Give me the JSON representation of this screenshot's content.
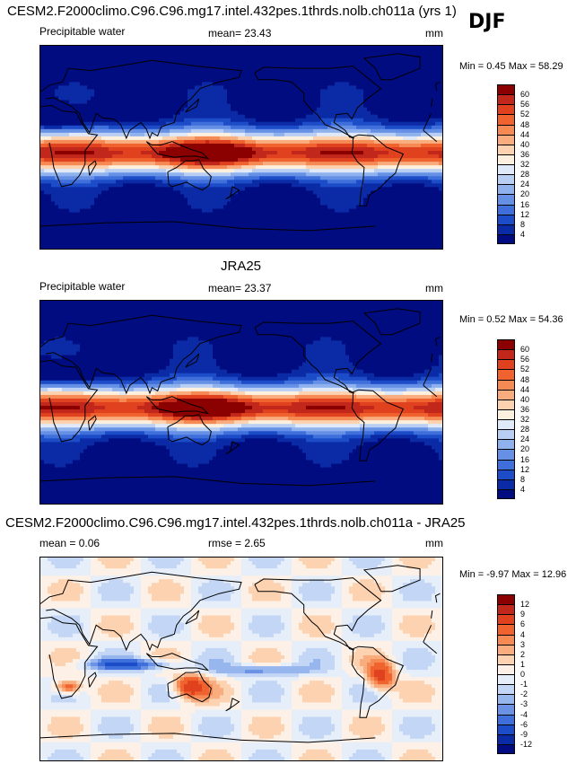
{
  "panels": [
    {
      "title": "CESM2.F2000climo.C96.C96.mg17.intel.432pes.1thrds.nolb.ch011a (yrs 1)",
      "variable": "Precipitable water",
      "stat": "mean=  23.43",
      "units": "mm",
      "minmax": "Min =   0.45 Max =  58.29",
      "kind": "abs",
      "colorbar": {
        "labels": [
          "60",
          "56",
          "52",
          "48",
          "44",
          "40",
          "36",
          "32",
          "28",
          "24",
          "20",
          "16",
          "12",
          "8",
          "4"
        ],
        "colors": [
          "#8b0000",
          "#c1271a",
          "#e0421f",
          "#f0632f",
          "#f58a55",
          "#f9ad7f",
          "#fcd2b0",
          "#fdf0df",
          "#dfe9f7",
          "#b8cff3",
          "#8fb1ee",
          "#6690e6",
          "#3e6fdb",
          "#1d4cc8",
          "#0b2aa6",
          "#000c80"
        ]
      }
    },
    {
      "title": "JRA25",
      "variable": "Precipitable water",
      "stat": "mean=  23.37",
      "units": "mm",
      "minmax": "Min =   0.52 Max =  54.36",
      "kind": "abs",
      "colorbar": {
        "labels": [
          "60",
          "56",
          "52",
          "48",
          "44",
          "40",
          "36",
          "32",
          "28",
          "24",
          "20",
          "16",
          "12",
          "8",
          "4"
        ],
        "colors": [
          "#8b0000",
          "#c1271a",
          "#e0421f",
          "#f0632f",
          "#f58a55",
          "#f9ad7f",
          "#fcd2b0",
          "#fdf0df",
          "#dfe9f7",
          "#b8cff3",
          "#8fb1ee",
          "#6690e6",
          "#3e6fdb",
          "#1d4cc8",
          "#0b2aa6",
          "#000c80"
        ]
      }
    },
    {
      "title": "CESM2.F2000climo.C96.C96.mg17.intel.432pes.1thrds.nolb.ch011a - JRA25",
      "variable": "mean =   0.06",
      "stat": "rmse =   2.65",
      "units": "mm",
      "minmax": "Min =  -9.97 Max =  12.96",
      "kind": "diff",
      "colorbar": {
        "labels": [
          "12",
          "9",
          "6",
          "4",
          "3",
          "2",
          "1",
          "0",
          "-1",
          "-2",
          "-3",
          "-4",
          "-6",
          "-9",
          "-12"
        ],
        "colors": [
          "#8b0000",
          "#c1271a",
          "#e0421f",
          "#f0632f",
          "#f58a55",
          "#f9ad7f",
          "#fcd2b0",
          "#fdf0e6",
          "#e6eefa",
          "#c3d6f5",
          "#97b6ee",
          "#6b92e4",
          "#3e6fdb",
          "#1d4cc8",
          "#0b2aa6",
          "#000c80"
        ]
      }
    }
  ],
  "season": "DJF",
  "chart_data": [
    {
      "type": "heatmap",
      "title": "CESM2.F2000climo.C96.C96.mg17.intel.432pes.1thrds.nolb.ch011a (yrs 1)",
      "variable": "Precipitable water",
      "units": "mm",
      "mean": 23.43,
      "min": 0.45,
      "max": 58.29,
      "levels": [
        4,
        8,
        12,
        16,
        20,
        24,
        28,
        32,
        36,
        40,
        44,
        48,
        52,
        56,
        60
      ]
    },
    {
      "type": "heatmap",
      "title": "JRA25",
      "variable": "Precipitable water",
      "units": "mm",
      "mean": 23.37,
      "min": 0.52,
      "max": 54.36,
      "levels": [
        4,
        8,
        12,
        16,
        20,
        24,
        28,
        32,
        36,
        40,
        44,
        48,
        52,
        56,
        60
      ]
    },
    {
      "type": "heatmap",
      "title": "CESM2.F2000climo.C96.C96.mg17.intel.432pes.1thrds.nolb.ch011a - JRA25",
      "units": "mm",
      "mean": 0.06,
      "rmse": 2.65,
      "min": -9.97,
      "max": 12.96,
      "levels": [
        -12,
        -9,
        -6,
        -4,
        -3,
        -2,
        -1,
        0,
        1,
        2,
        3,
        4,
        6,
        9,
        12
      ]
    }
  ]
}
